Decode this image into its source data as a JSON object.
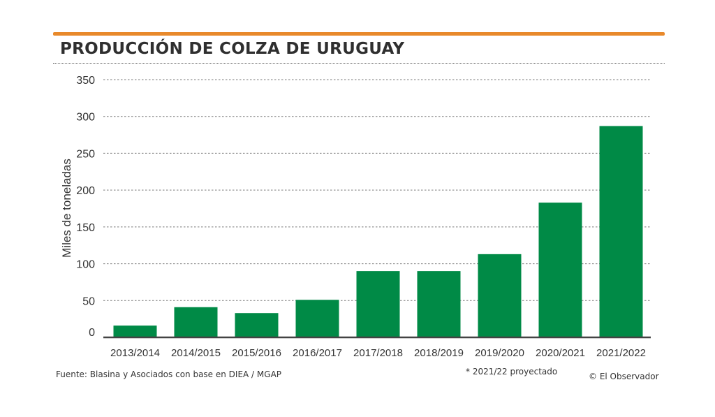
{
  "title": "PRODUCCIÓN DE COLZA DE URUGUAY",
  "source": "Fuente: Blasina y Asociados con base en DIEA / MGAP",
  "note": "* 2021/22 proyectado",
  "credit": "© El Observador",
  "chart_data": {
    "type": "bar",
    "categories": [
      "2013/2014",
      "2014/2015",
      "2015/2016",
      "2016/2017",
      "2017/2018",
      "2018/2019",
      "2019/2020",
      "2020/2021",
      "2021/2022"
    ],
    "values": [
      16,
      41,
      33,
      51,
      90,
      90,
      113,
      183,
      287
    ],
    "ylabel": "Miles de toneladas",
    "ylim": [
      0,
      350
    ],
    "yticks": [
      0,
      50,
      100,
      150,
      200,
      250,
      300,
      350
    ],
    "grid": true,
    "bar_color": "#008a46",
    "accent_color": "#e8892b"
  }
}
